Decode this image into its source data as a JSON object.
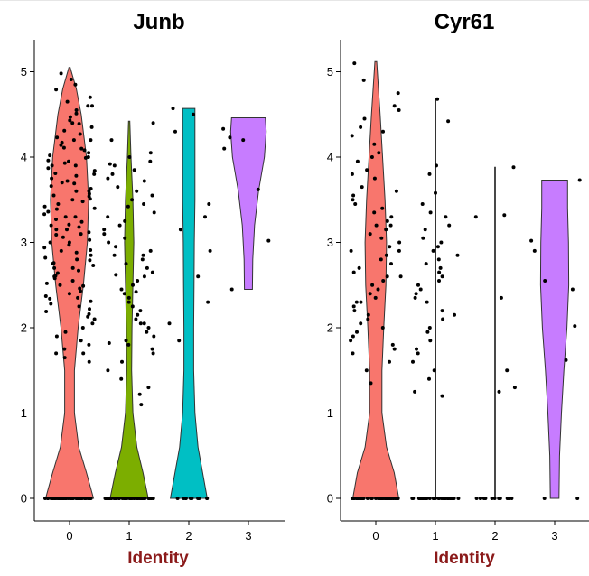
{
  "colors": {
    "cluster_0": "#F8766D",
    "cluster_1": "#7CAE00",
    "cluster_2": "#00BFC4",
    "cluster_3": "#C77CFF",
    "xlabel": "#8B1A1A",
    "points": "#000000"
  },
  "chart_data": [
    {
      "type": "violin",
      "title": "Junb",
      "xlabel": "Identity",
      "ylabel": "",
      "categories": [
        "0",
        "1",
        "2",
        "3"
      ],
      "x_ticks": [
        "0",
        "1",
        "2",
        "3"
      ],
      "y_ticks": [
        "0",
        "1",
        "2",
        "3",
        "4",
        "5"
      ],
      "ylim": [
        -0.2,
        5.2
      ],
      "grid": false,
      "legend": "none",
      "violins": [
        {
          "category": "0",
          "min": 0,
          "max": 5.05,
          "zero_points": 60,
          "density": [
            [
              0,
              0.78
            ],
            [
              0.3,
              0.55
            ],
            [
              0.6,
              0.3
            ],
            [
              1.0,
              0.16
            ],
            [
              1.5,
              0.16
            ],
            [
              2.0,
              0.28
            ],
            [
              2.5,
              0.45
            ],
            [
              3.0,
              0.58
            ],
            [
              3.5,
              0.62
            ],
            [
              4.0,
              0.55
            ],
            [
              4.5,
              0.38
            ],
            [
              4.8,
              0.22
            ],
            [
              5.05,
              0.02
            ]
          ],
          "points": [
            4.98,
            4.91,
            4.85,
            4.79,
            4.7,
            4.65,
            4.6,
            4.55,
            4.51,
            4.47,
            4.43,
            4.39,
            4.35,
            4.31,
            4.27,
            4.23,
            4.2,
            4.17,
            4.14,
            4.11,
            4.08,
            4.05,
            4.02,
            3.99,
            3.96,
            3.93,
            3.9,
            3.87,
            3.84,
            3.81,
            3.78,
            3.75,
            3.72,
            3.69,
            3.66,
            3.63,
            3.6,
            3.57,
            3.54,
            3.51,
            3.48,
            3.45,
            3.42,
            3.39,
            3.36,
            3.33,
            3.3,
            3.27,
            3.24,
            3.21,
            3.18,
            3.15,
            3.12,
            3.09,
            3.06,
            3.03,
            3.0,
            2.97,
            2.94,
            2.91,
            2.88,
            2.85,
            2.82,
            2.79,
            2.76,
            2.73,
            2.7,
            2.67,
            2.64,
            2.61,
            2.58,
            2.55,
            2.52,
            2.49,
            2.46,
            2.43,
            2.4,
            2.37,
            2.34,
            2.31,
            2.28,
            2.25,
            2.22,
            2.19,
            2.16,
            2.13,
            2.1,
            2.05,
            2.0,
            1.95,
            1.9,
            1.85,
            1.8,
            1.75,
            1.7,
            1.65,
            1.6,
            3.5,
            3.7,
            3.9,
            4.1,
            2.9,
            3.1,
            3.3,
            2.7,
            2.5,
            3.8,
            3.4,
            3.6,
            4.0,
            4.2,
            2.6,
            2.8,
            3.2,
            3.0,
            4.4,
            1.7,
            4.6,
            3.95,
            3.55,
            3.15,
            2.75,
            2.35
          ]
        },
        {
          "category": "1",
          "min": 0,
          "max": 4.42,
          "zero_points": 50,
          "density": [
            [
              0,
              0.62
            ],
            [
              0.3,
              0.45
            ],
            [
              0.6,
              0.25
            ],
            [
              1.0,
              0.12
            ],
            [
              1.5,
              0.08
            ],
            [
              2.0,
              0.09
            ],
            [
              2.5,
              0.12
            ],
            [
              3.0,
              0.15
            ],
            [
              3.5,
              0.12
            ],
            [
              4.0,
              0.06
            ],
            [
              4.42,
              0.02
            ]
          ],
          "points": [
            4.4,
            4.2,
            4.05,
            4.0,
            3.92,
            3.9,
            3.85,
            3.8,
            3.75,
            3.65,
            3.6,
            3.5,
            3.42,
            3.35,
            3.3,
            3.25,
            3.2,
            3.15,
            3.1,
            3.05,
            3.0,
            2.95,
            2.9,
            2.85,
            2.8,
            2.75,
            2.7,
            2.65,
            2.6,
            2.55,
            2.5,
            2.45,
            2.4,
            2.35,
            2.3,
            2.25,
            2.2,
            2.15,
            2.1,
            2.05,
            2.0,
            1.95,
            1.9,
            1.85,
            1.8,
            1.75,
            1.7,
            1.6,
            1.5,
            1.4,
            1.3,
            1.22,
            1.1,
            3.55,
            3.45,
            2.85,
            2.62,
            2.05,
            1.82,
            3.95,
            3.72,
            2.42
          ]
        },
        {
          "category": "2",
          "min": 0,
          "max": 4.57,
          "zero_points": 10,
          "density": [
            [
              0,
              0.6
            ],
            [
              0.3,
              0.45
            ],
            [
              0.6,
              0.3
            ],
            [
              1.0,
              0.2
            ],
            [
              1.5,
              0.16
            ],
            [
              2.0,
              0.16
            ],
            [
              2.5,
              0.17
            ],
            [
              3.0,
              0.18
            ],
            [
              3.5,
              0.2
            ],
            [
              4.0,
              0.2
            ],
            [
              4.57,
              0.2
            ]
          ],
          "points": [
            4.57,
            4.5,
            4.3,
            3.45,
            3.3,
            3.15,
            2.6,
            2.3,
            2.05,
            1.85,
            2.9
          ]
        },
        {
          "category": "3",
          "min": 2.45,
          "max": 4.46,
          "zero_points": 0,
          "density": [
            [
              2.45,
              0.13
            ],
            [
              2.8,
              0.14
            ],
            [
              3.2,
              0.2
            ],
            [
              3.6,
              0.33
            ],
            [
              4.0,
              0.52
            ],
            [
              4.3,
              0.58
            ],
            [
              4.46,
              0.55
            ]
          ],
          "points": [
            4.33,
            4.23,
            4.2,
            4.1,
            3.62,
            3.02,
            2.45
          ]
        }
      ]
    },
    {
      "type": "violin",
      "title": "Cyr61",
      "xlabel": "Identity",
      "ylabel": "",
      "categories": [
        "0",
        "1",
        "2",
        "3"
      ],
      "x_ticks": [
        "0",
        "1",
        "2",
        "3"
      ],
      "y_ticks": [
        "0",
        "1",
        "2",
        "3",
        "4",
        "5"
      ],
      "ylim": [
        -0.2,
        5.2
      ],
      "grid": false,
      "legend": "none",
      "violins": [
        {
          "category": "0",
          "min": 0,
          "max": 5.12,
          "zero_points": 55,
          "density": [
            [
              0,
              0.75
            ],
            [
              0.3,
              0.6
            ],
            [
              0.6,
              0.35
            ],
            [
              1.0,
              0.2
            ],
            [
              1.5,
              0.2
            ],
            [
              2.0,
              0.26
            ],
            [
              2.5,
              0.33
            ],
            [
              3.0,
              0.35
            ],
            [
              3.5,
              0.3
            ],
            [
              4.0,
              0.22
            ],
            [
              4.5,
              0.14
            ],
            [
              5.12,
              0.03
            ]
          ],
          "points": [
            5.1,
            4.9,
            4.75,
            4.6,
            4.55,
            4.45,
            4.35,
            4.25,
            4.15,
            4.05,
            3.95,
            3.85,
            3.75,
            3.65,
            3.55,
            3.5,
            3.45,
            3.4,
            3.35,
            3.3,
            3.25,
            3.2,
            3.15,
            3.1,
            3.05,
            3.0,
            2.95,
            2.9,
            2.85,
            2.8,
            2.75,
            2.7,
            2.65,
            2.6,
            2.55,
            2.5,
            2.45,
            2.4,
            2.35,
            2.3,
            2.25,
            2.2,
            2.15,
            2.1,
            2.05,
            2.0,
            1.95,
            1.9,
            1.85,
            1.8,
            1.75,
            1.7,
            1.6,
            1.5,
            1.35,
            3.6,
            3.2,
            2.9,
            2.6,
            2.3,
            4.3,
            4.0,
            3.8
          ]
        },
        {
          "category": "1",
          "min": 0,
          "max": 4.68,
          "zero_points": 45,
          "density": [
            [
              0,
              0.015
            ],
            [
              4.68,
              0.015
            ]
          ],
          "points": [
            4.68,
            4.42,
            3.9,
            3.8,
            3.58,
            3.45,
            3.3,
            3.2,
            3.15,
            3.05,
            3.0,
            2.95,
            2.85,
            2.8,
            2.75,
            2.7,
            2.65,
            2.6,
            2.55,
            2.5,
            2.45,
            2.4,
            2.3,
            2.2,
            2.15,
            2.1,
            2.0,
            1.95,
            1.85,
            1.75,
            1.7,
            1.6,
            1.5,
            1.4,
            1.25,
            1.2,
            3.35,
            2.9,
            2.35
          ]
        },
        {
          "category": "2",
          "min": 0,
          "max": 3.88,
          "zero_points": 12,
          "density": [
            [
              0,
              0.012
            ],
            [
              3.88,
              0.012
            ]
          ],
          "points": [
            3.88,
            3.32,
            3.3,
            2.35,
            1.5,
            1.3,
            1.25
          ]
        },
        {
          "category": "3",
          "min": 0,
          "max": 3.73,
          "zero_points": 2,
          "density": [
            [
              0,
              0.14
            ],
            [
              0.5,
              0.16
            ],
            [
              1.0,
              0.22
            ],
            [
              1.5,
              0.3
            ],
            [
              2.0,
              0.4
            ],
            [
              2.5,
              0.46
            ],
            [
              3.0,
              0.45
            ],
            [
              3.4,
              0.42
            ],
            [
              3.73,
              0.42
            ]
          ],
          "points": [
            3.73,
            3.02,
            2.9,
            2.55,
            2.45,
            2.02,
            1.62
          ]
        }
      ]
    }
  ]
}
